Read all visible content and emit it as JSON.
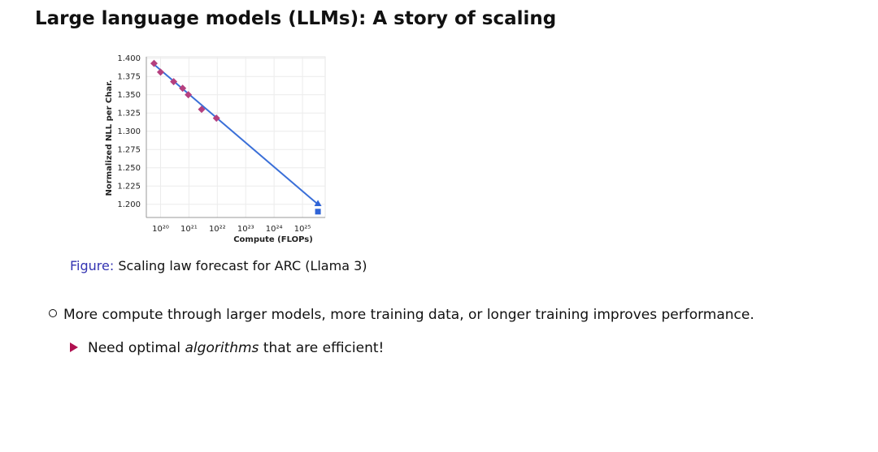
{
  "slide": {
    "title": "Large language models (LLMs): A story of scaling",
    "caption": {
      "label": "Figure:",
      "text": "Scaling law forecast for ARC (Llama 3)"
    },
    "bullets": [
      {
        "parts": [
          {
            "text": "More compute through larger models, more training data, or longer training improves performance.",
            "italic": false
          }
        ]
      },
      {
        "parts": [
          {
            "text": "Need optimal ",
            "italic": false
          },
          {
            "text": "algorithms",
            "italic": true
          },
          {
            "text": " that are efficient!",
            "italic": false
          }
        ]
      }
    ]
  },
  "chart_data": {
    "type": "scatter",
    "xlabel": "Compute (FLOPs)",
    "ylabel": "Normalized NLL per Char.",
    "xscale": "log",
    "grid": true,
    "xlim": [
      3.16e+19,
      6.3e+25
    ],
    "xticks": [
      {
        "value": 1e+20,
        "label": "10²⁰"
      },
      {
        "value": 1e+21,
        "label": "10²¹"
      },
      {
        "value": 1e+22,
        "label": "10²²"
      },
      {
        "value": 1e+23,
        "label": "10²³"
      },
      {
        "value": 1e+24,
        "label": "10²⁴"
      },
      {
        "value": 1e+25,
        "label": "10²⁵"
      }
    ],
    "ylim": [
      1.182,
      1.402
    ],
    "yticks": [
      {
        "value": 1.2,
        "label": "1.200"
      },
      {
        "value": 1.225,
        "label": "1.225"
      },
      {
        "value": 1.25,
        "label": "1.250"
      },
      {
        "value": 1.275,
        "label": "1.275"
      },
      {
        "value": 1.3,
        "label": "1.300"
      },
      {
        "value": 1.325,
        "label": "1.325"
      },
      {
        "value": 1.35,
        "label": "1.350"
      },
      {
        "value": 1.375,
        "label": "1.375"
      },
      {
        "value": 1.4,
        "label": "1.400"
      }
    ],
    "series": [
      {
        "marker": "line",
        "color": "#3a6fd8",
        "x": [
          5e+19,
          3.5e+25
        ],
        "values": [
          1.394,
          1.2
        ]
      },
      {
        "marker": "diamond",
        "color": "#b5407f",
        "x": [
          5.9e+19,
          1e+20,
          2.9e+20,
          6e+20,
          9.5e+20,
          2.8e+21,
          9.3e+21
        ],
        "values": [
          1.393,
          1.381,
          1.368,
          1.359,
          1.35,
          1.33,
          1.318
        ]
      },
      {
        "marker": "triangle",
        "color": "#2f63d6",
        "x": [
          3.5e+25
        ],
        "values": [
          1.201
        ]
      },
      {
        "marker": "square",
        "color": "#2f63d6",
        "x": [
          3.5e+25
        ],
        "values": [
          1.19
        ]
      }
    ]
  }
}
